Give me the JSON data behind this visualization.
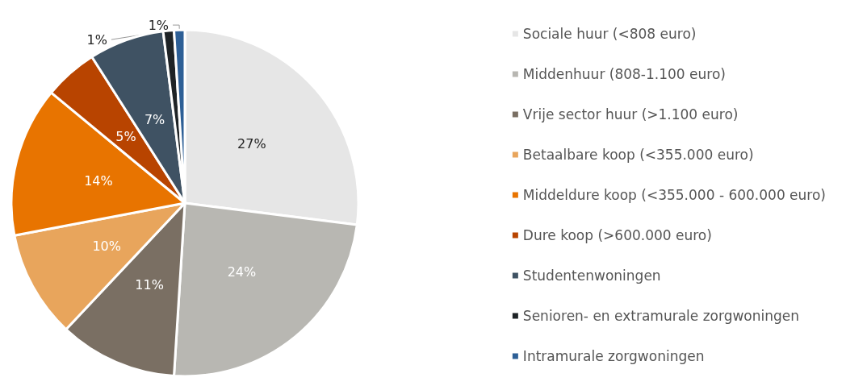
{
  "chart_data": {
    "type": "pie",
    "categories": [
      "Sociale huur (<808 euro)",
      "Middenhuur (808-1.100 euro)",
      "Vrije sector huur (>1.100 euro)",
      "Betaalbare koop (<355.000 euro)",
      "Middeldure koop (<355.000 - 600.000 euro)",
      "Dure koop (>600.000 euro)",
      "Studentenwoningen",
      "Senioren- en extramurale zorgwoningen",
      "Intramurale zorgwoningen"
    ],
    "values": [
      27,
      24,
      11,
      10,
      14,
      5,
      7,
      1,
      1
    ],
    "colors": [
      "#e6e6e6",
      "#b8b7b2",
      "#7a6f63",
      "#e8a55c",
      "#e87400",
      "#b84400",
      "#3f5263",
      "#1e2326",
      "#2d5f96"
    ],
    "value_labels": [
      "27%",
      "24%",
      "11%",
      "10%",
      "14%",
      "5%",
      "7%",
      "1%",
      "1%"
    ],
    "legend": "right"
  }
}
